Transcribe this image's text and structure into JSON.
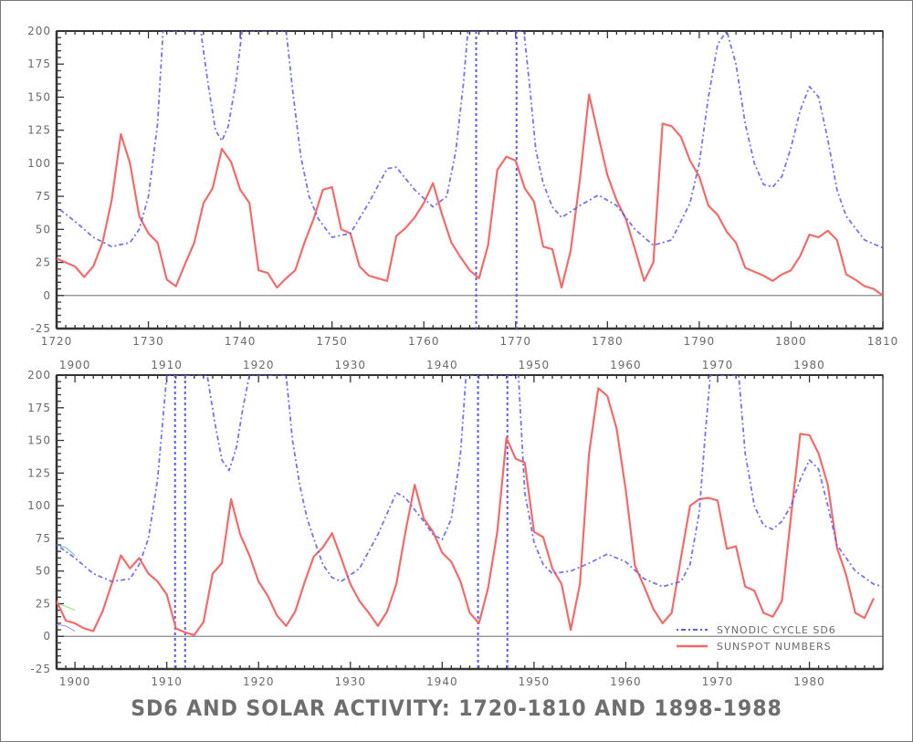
{
  "title": "SD6 AND SOLAR ACTIVITY: 1720-1810 AND 1898-1988",
  "colors": {
    "sunspot": "#f26b6b",
    "sd6": "#5c5cf0",
    "axis": "#555555",
    "text": "#6a6a6a"
  },
  "legend": {
    "sd6_label": "SYNODIC CYCLE SD6",
    "sunspot_label": "SUNSPOT NUMBERS",
    "placement": "bottom-right"
  },
  "chart_data": [
    {
      "type": "line",
      "title": "",
      "xlim": [
        1720,
        1810
      ],
      "ylim": [
        -25,
        200
      ],
      "xticks": [
        1720,
        1730,
        1740,
        1750,
        1760,
        1770,
        1780,
        1790,
        1800,
        1810
      ],
      "yticks": [
        -25,
        0,
        25,
        50,
        75,
        100,
        125,
        150,
        175,
        200
      ],
      "top_xticks": [],
      "poles": [
        1765.7,
        1770.1
      ],
      "series": [
        {
          "name": "SUNSPOT NUMBERS",
          "x": [
            1720,
            1721,
            1722,
            1723,
            1724,
            1725,
            1726,
            1727,
            1728,
            1729,
            1730,
            1731,
            1732,
            1733,
            1734,
            1735,
            1736,
            1737,
            1738,
            1739,
            1740,
            1741,
            1742,
            1743,
            1744,
            1745,
            1746,
            1747,
            1748,
            1749,
            1750,
            1751,
            1752,
            1753,
            1754,
            1755,
            1756,
            1757,
            1758,
            1759,
            1760,
            1761,
            1762,
            1763,
            1764,
            1765,
            1766,
            1767,
            1768,
            1769,
            1770,
            1771,
            1772,
            1773,
            1774,
            1775,
            1776,
            1777,
            1778,
            1779,
            1780,
            1781,
            1782,
            1783,
            1784,
            1785,
            1786,
            1787,
            1788,
            1789,
            1790,
            1791,
            1792,
            1793,
            1794,
            1795,
            1796,
            1797,
            1798,
            1799,
            1800,
            1801,
            1802,
            1803,
            1804,
            1805,
            1806,
            1807,
            1808,
            1809,
            1810
          ],
          "values": [
            28,
            25,
            22,
            14,
            22,
            40,
            72,
            122,
            100,
            60,
            47,
            40,
            12,
            7,
            24,
            40,
            70,
            81,
            111,
            101,
            80,
            70,
            19,
            17,
            6,
            13,
            19,
            40,
            58,
            80,
            82,
            50,
            47,
            22,
            15,
            13,
            11,
            45,
            51,
            59,
            70,
            85,
            61,
            40,
            29,
            19,
            13,
            38,
            95,
            105,
            102,
            81,
            71,
            37,
            35,
            6,
            34,
            88,
            152,
            121,
            91,
            72,
            58,
            35,
            11,
            25,
            130,
            128,
            120,
            102,
            90,
            68,
            61,
            48,
            40,
            21,
            18,
            15,
            11,
            16,
            19,
            30,
            46,
            44,
            49,
            42,
            16,
            12,
            7,
            5,
            0
          ]
        },
        {
          "name": "SYNODIC CYCLE SD6",
          "x": [
            1720,
            1722,
            1724,
            1726,
            1728,
            1729,
            1730,
            1731,
            1731.6,
            1735.7,
            1736.5,
            1737.3,
            1738,
            1738.7,
            1739.5,
            1740.2,
            1745,
            1745.8,
            1746.6,
            1747.5,
            1748.5,
            1750,
            1752,
            1754,
            1756,
            1757,
            1759,
            1761,
            1762.5,
            1763.5,
            1764.3,
            1764.8,
            1770.9,
            1771.5,
            1772.2,
            1773,
            1774,
            1775,
            1777,
            1779,
            1781,
            1783,
            1785,
            1787,
            1789,
            1790,
            1791,
            1792,
            1793,
            1794,
            1795,
            1796,
            1797,
            1798,
            1799,
            1800,
            1801,
            1802,
            1803,
            1804,
            1805,
            1806,
            1808,
            1810
          ],
          "values": [
            67,
            56,
            44,
            37,
            40,
            50,
            75,
            130,
            200,
            200,
            160,
            125,
            117,
            128,
            160,
            200,
            200,
            150,
            105,
            75,
            58,
            44,
            47,
            70,
            96,
            97,
            80,
            67,
            75,
            110,
            160,
            200,
            200,
            160,
            110,
            85,
            67,
            59,
            68,
            76,
            68,
            50,
            38,
            42,
            70,
            100,
            150,
            190,
            200,
            175,
            130,
            100,
            84,
            82,
            90,
            112,
            140,
            158,
            150,
            118,
            80,
            60,
            42,
            36
          ]
        }
      ]
    },
    {
      "type": "line",
      "title": "",
      "xlim": [
        1898,
        1988
      ],
      "ylim": [
        -25,
        200
      ],
      "xticks": [
        1900,
        1910,
        1920,
        1930,
        1940,
        1950,
        1960,
        1970,
        1980
      ],
      "yticks": [
        -25,
        0,
        25,
        50,
        75,
        100,
        125,
        150,
        175,
        200
      ],
      "top_xticks": [
        1900,
        1910,
        1920,
        1930,
        1940,
        1950,
        1960,
        1970,
        1980
      ],
      "poles": [
        1910.9,
        1912.0,
        1943.9,
        1947.1
      ],
      "series": [
        {
          "name": "SUNSPOT NUMBERS",
          "x": [
            1898,
            1899,
            1900,
            1901,
            1902,
            1903,
            1904,
            1905,
            1906,
            1907,
            1908,
            1909,
            1910,
            1911,
            1912,
            1913,
            1914,
            1915,
            1916,
            1917,
            1918,
            1919,
            1920,
            1921,
            1922,
            1923,
            1924,
            1925,
            1926,
            1927,
            1928,
            1929,
            1930,
            1931,
            1932,
            1933,
            1934,
            1935,
            1936,
            1937,
            1938,
            1939,
            1940,
            1941,
            1942,
            1943,
            1944,
            1945,
            1946,
            1947,
            1948,
            1949,
            1950,
            1951,
            1952,
            1953,
            1954,
            1955,
            1956,
            1957,
            1958,
            1959,
            1960,
            1961,
            1962,
            1963,
            1964,
            1965,
            1966,
            1967,
            1968,
            1969,
            1970,
            1971,
            1972,
            1973,
            1974,
            1975,
            1976,
            1977,
            1978,
            1979,
            1980,
            1981,
            1982,
            1983,
            1984,
            1985,
            1986,
            1987
          ],
          "values": [
            27,
            12,
            10,
            6,
            4,
            19,
            40,
            62,
            52,
            60,
            48,
            42,
            32,
            6,
            3,
            1,
            11,
            48,
            56,
            105,
            78,
            62,
            42,
            31,
            16,
            8,
            19,
            41,
            61,
            68,
            79,
            60,
            40,
            27,
            18,
            8,
            19,
            40,
            80,
            116,
            90,
            80,
            64,
            57,
            42,
            18,
            10,
            37,
            80,
            152,
            136,
            133,
            80,
            76,
            52,
            40,
            5,
            40,
            140,
            190,
            184,
            159,
            112,
            54,
            38,
            21,
            10,
            18,
            60,
            100,
            105,
            106,
            104,
            67,
            69,
            38,
            35,
            18,
            15,
            27,
            92,
            155,
            154,
            140,
            116,
            68,
            47,
            18,
            14,
            29
          ]
        },
        {
          "name": "SYNODIC CYCLE SD6",
          "x": [
            1898,
            1900,
            1902,
            1904,
            1906,
            1907,
            1908,
            1909,
            1910,
            1914.4,
            1915.2,
            1916,
            1916.8,
            1917.6,
            1918.3,
            1919,
            1923,
            1923.7,
            1924.5,
            1925.3,
            1926,
            1927,
            1928,
            1929,
            1931,
            1933,
            1935,
            1936,
            1938,
            1939,
            1940,
            1941,
            1942,
            1942.6,
            1948.3,
            1949,
            1950,
            1951,
            1952,
            1954,
            1956,
            1958,
            1960,
            1962,
            1964,
            1966,
            1967,
            1968,
            1968.6,
            1969.2,
            1972.3,
            1973,
            1974,
            1975,
            1976,
            1977,
            1978,
            1979,
            1980,
            1981,
            1982,
            1983,
            1985,
            1987,
            1988
          ],
          "values": [
            70,
            60,
            48,
            42,
            44,
            55,
            75,
            120,
            200,
            200,
            165,
            135,
            127,
            145,
            175,
            200,
            200,
            150,
            115,
            90,
            75,
            55,
            45,
            42,
            52,
            78,
            110,
            106,
            88,
            78,
            74,
            90,
            140,
            200,
            200,
            110,
            72,
            55,
            48,
            50,
            56,
            63,
            57,
            44,
            38,
            42,
            55,
            95,
            150,
            200,
            200,
            140,
            100,
            85,
            82,
            88,
            100,
            120,
            135,
            128,
            100,
            70,
            50,
            40,
            38
          ]
        }
      ],
      "extra_segments": [
        {
          "color": "#6fb7bd",
          "x": [
            1898,
            1899,
            1900
          ],
          "values": [
            70,
            68,
            62
          ]
        },
        {
          "color": "#7fe07f",
          "x": [
            1898,
            1899,
            1900
          ],
          "values": [
            25,
            23,
            20
          ]
        },
        {
          "color": "#8a8af0",
          "x": [
            1898,
            1899,
            1900
          ],
          "values": [
            9,
            8,
            4
          ]
        }
      ]
    }
  ]
}
